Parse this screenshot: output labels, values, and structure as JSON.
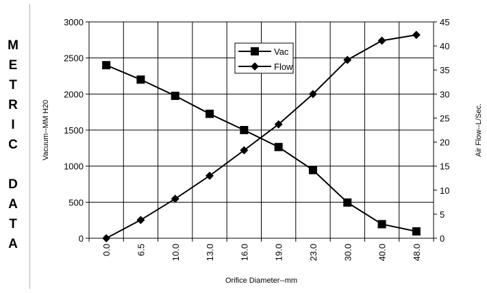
{
  "side_label": [
    "M",
    "E",
    "T",
    "R",
    "I",
    "C",
    "",
    "D",
    "A",
    "T",
    "A"
  ],
  "chart_data": {
    "type": "line",
    "x": [
      "0.0",
      "6.5",
      "10.0",
      "13.0",
      "16.0",
      "19.0",
      "23.0",
      "30.0",
      "40.0",
      "48.0"
    ],
    "xlabel": "Orifice Diameter--mm",
    "ylabel": "Vacuum--MM H20",
    "y2label": "Air Flow--L/Sec.",
    "ylim": [
      0,
      3000
    ],
    "yticks": [
      "0",
      "500",
      "1000",
      "1500",
      "2000",
      "2500",
      "3000"
    ],
    "y2lim": [
      0,
      45
    ],
    "y2ticks": [
      "0",
      "5",
      "10",
      "15",
      "20",
      "25",
      "30",
      "35",
      "40",
      "45"
    ],
    "grid": true,
    "legend_position": "top-center",
    "series": [
      {
        "name": "Vac",
        "axis": "left",
        "marker": "square",
        "values": [
          2400,
          2200,
          1975,
          1725,
          1500,
          1265,
          945,
          495,
          195,
          95
        ]
      },
      {
        "name": "Flow",
        "axis": "right",
        "marker": "diamond",
        "values": [
          0,
          3.8,
          8.2,
          13,
          18.3,
          23.7,
          30,
          37.1,
          41.1,
          42.3
        ]
      }
    ]
  }
}
